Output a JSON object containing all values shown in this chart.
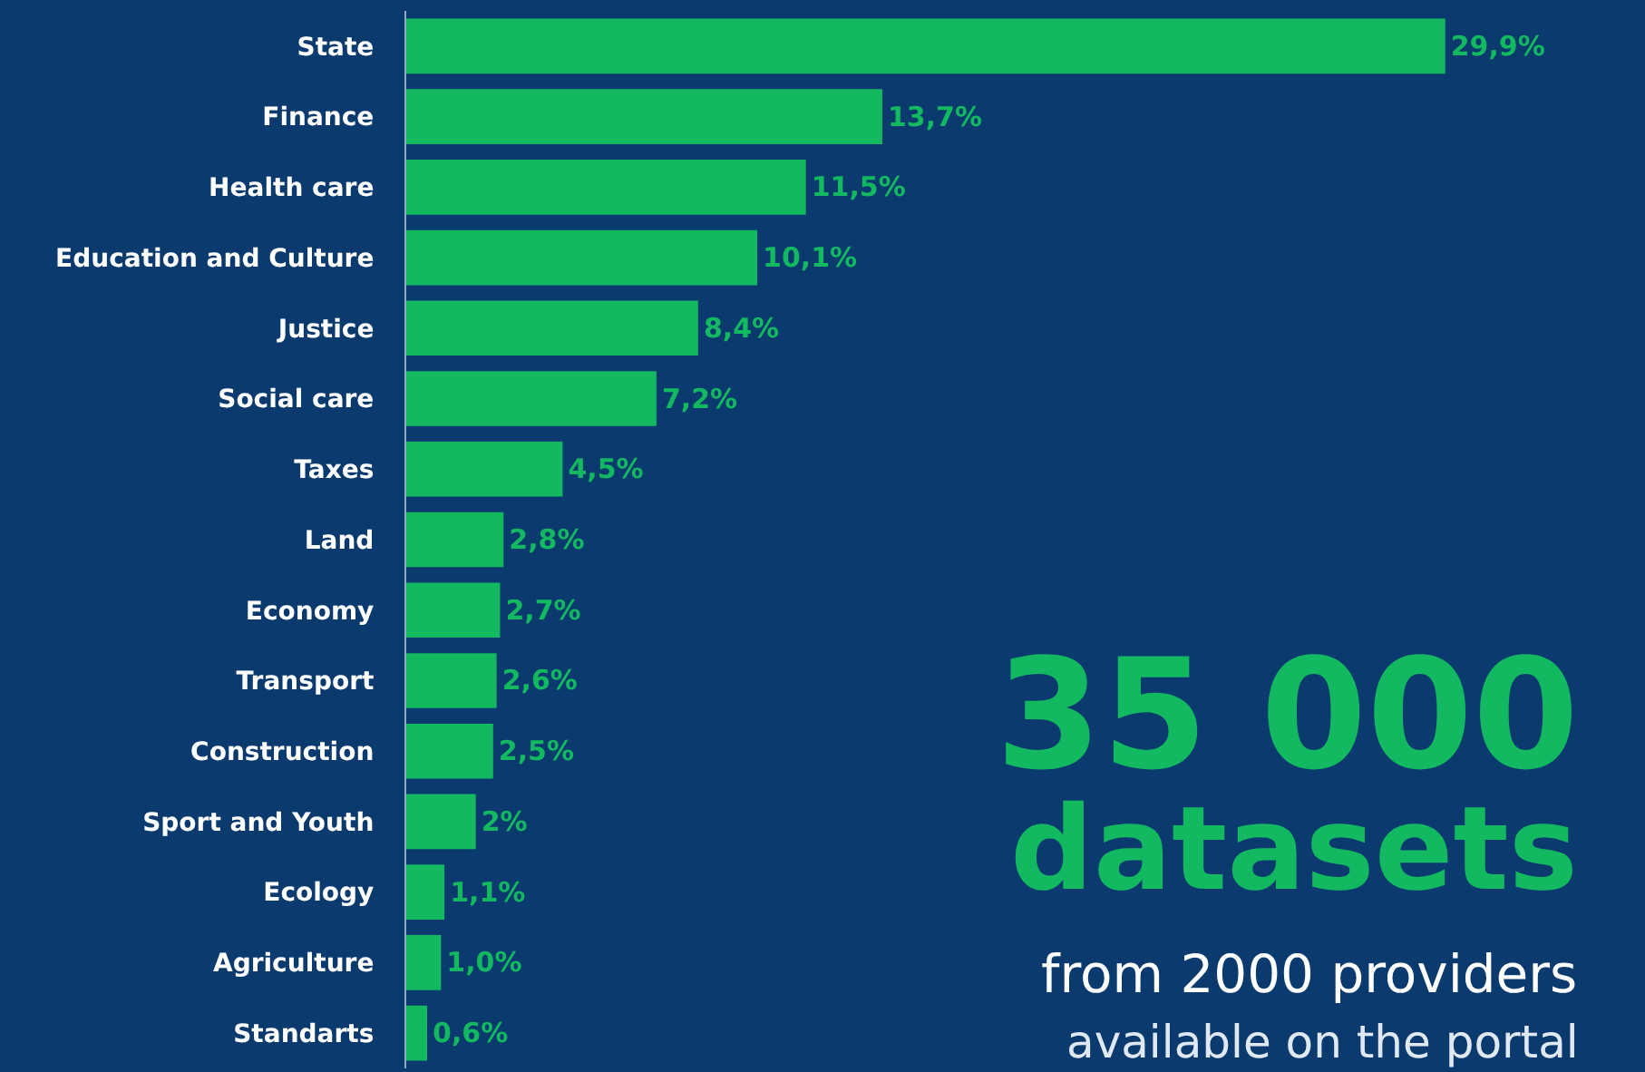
{
  "chart_data": {
    "type": "bar",
    "orientation": "horizontal",
    "categories": [
      "State",
      "Finance",
      "Health care",
      "Education and Culture",
      "Justice",
      "Social care",
      "Taxes",
      "Land",
      "Economy",
      "Transport",
      "Construction",
      "Sport and Youth",
      "Ecology",
      "Agriculture",
      "Standarts"
    ],
    "values": [
      29.9,
      13.7,
      11.5,
      10.1,
      8.4,
      7.2,
      4.5,
      2.8,
      2.7,
      2.6,
      2.5,
      2,
      1.1,
      1.0,
      0.6
    ],
    "value_labels": [
      "29,9%",
      "13,7%",
      "11,5%",
      "10,1%",
      "8,4%",
      "7,2%",
      "4,5%",
      "2,8%",
      "2,7%",
      "2,6%",
      "2,5%",
      "2%",
      "1,1%",
      "1,0%",
      "0,6%"
    ],
    "color": "#12b960",
    "annotations": [
      "35 000",
      "datasets",
      "from 2000 providers",
      "available on the portal"
    ]
  }
}
